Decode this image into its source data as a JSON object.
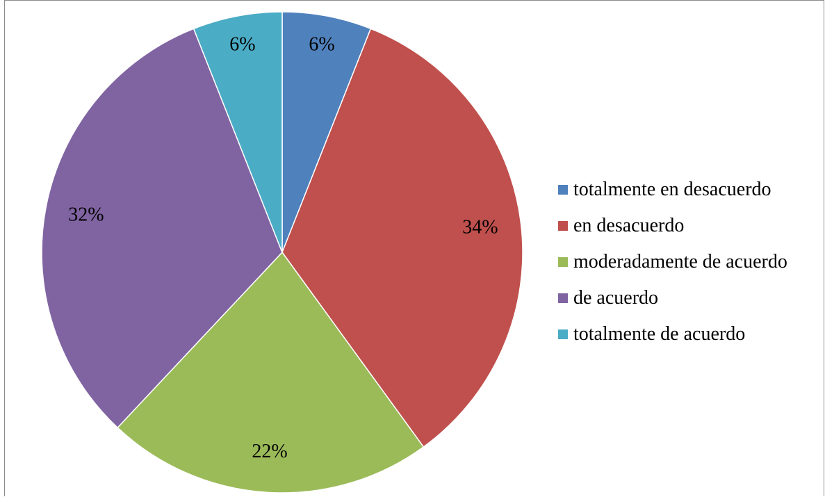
{
  "chart_data": {
    "type": "pie",
    "title": "",
    "categories": [
      "totalmente en desacuerdo",
      "en desacuerdo",
      "moderadamente de acuerdo",
      "de acuerdo",
      "totalmente de acuerdo"
    ],
    "values": [
      6,
      34,
      22,
      32,
      6
    ],
    "labels": [
      "6%",
      "34%",
      "22%",
      "32%",
      "6%"
    ],
    "colors": [
      "#4f81bd",
      "#c0504d",
      "#9bbb59",
      "#8064a2",
      "#4bacc6"
    ],
    "legend_position": "right",
    "start_angle": "12 o'clock",
    "direction": "clockwise"
  }
}
